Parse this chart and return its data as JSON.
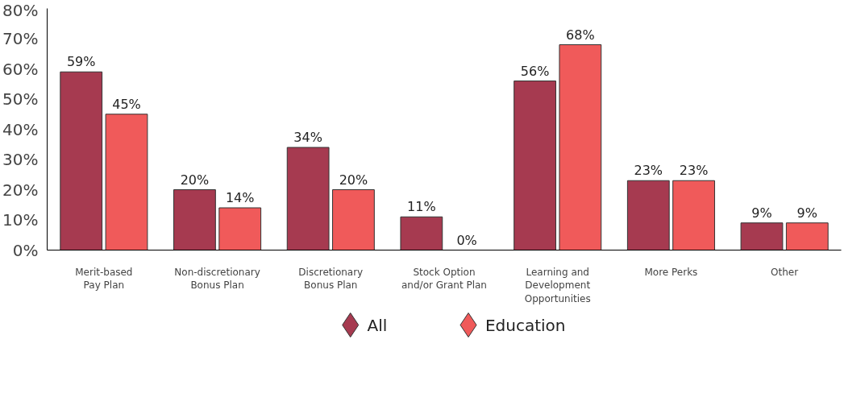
{
  "chart_data": {
    "type": "bar",
    "categories": [
      "Merit-based\nPay Plan",
      "Non-discretionary\nBonus Plan",
      "Discretionary\nBonus Plan",
      "Stock Option\nand/or Grant Plan",
      "Learning and\nDevelopment\nOpportunities",
      "More Perks",
      "Other"
    ],
    "series": [
      {
        "name": "All",
        "color": "#a63a50",
        "values": [
          59,
          20,
          34,
          11,
          56,
          23,
          9
        ],
        "value_labels": [
          "59%",
          "20%",
          "34%",
          "11%",
          "56%",
          "23%",
          "9%"
        ]
      },
      {
        "name": "Education",
        "color": "#f05a5a",
        "values": [
          45,
          14,
          20,
          0,
          68,
          23,
          9
        ],
        "value_labels": [
          "45%",
          "14%",
          "20%",
          "0%",
          "68%",
          "23%",
          "9%"
        ]
      }
    ],
    "ylim": [
      0,
      80
    ],
    "yticks": [
      {
        "value": 0,
        "label": "0%"
      },
      {
        "value": 10,
        "label": "10%"
      },
      {
        "value": 20,
        "label": "20%"
      },
      {
        "value": 30,
        "label": "30%"
      },
      {
        "value": 40,
        "label": "40%"
      },
      {
        "value": 50,
        "label": "50%"
      },
      {
        "value": 60,
        "label": "60%"
      },
      {
        "value": 70,
        "label": "70%"
      },
      {
        "value": 80,
        "label": "80%"
      }
    ],
    "grid": false,
    "legend": "bottom"
  }
}
